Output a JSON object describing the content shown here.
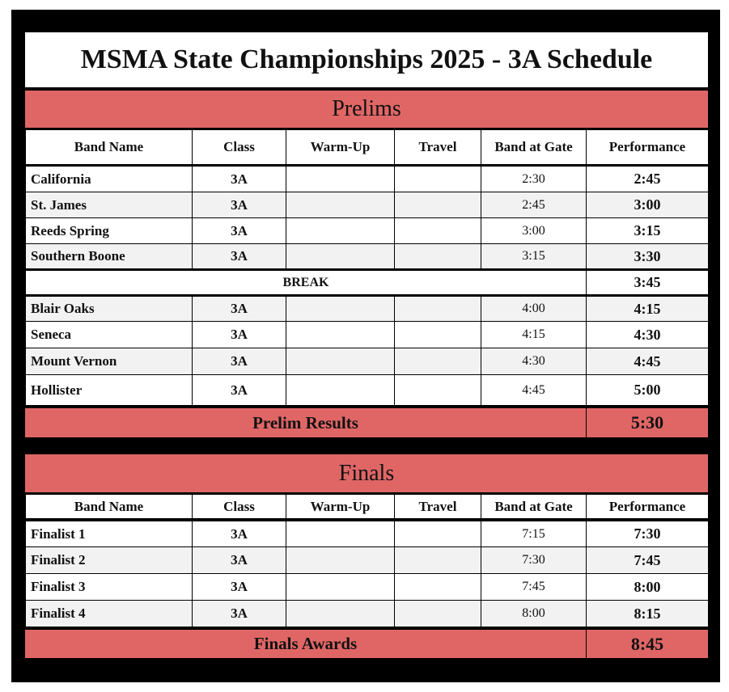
{
  "title": "MSMA State Championships 2025 - 3A Schedule",
  "colors": {
    "section_fill": "#e06666",
    "alt_row_fill": "#f2f2f2",
    "frame": "#000000"
  },
  "columns": [
    "Band Name",
    "Class",
    "Warm-Up",
    "Travel",
    "Band at Gate",
    "Performance"
  ],
  "prelims": {
    "heading": "Prelims",
    "rows": [
      {
        "band": "California",
        "class": "3A",
        "warmup": "",
        "travel": "",
        "gate": "2:30",
        "performance": "2:45"
      },
      {
        "band": "St. James",
        "class": "3A",
        "warmup": "",
        "travel": "",
        "gate": "2:45",
        "performance": "3:00"
      },
      {
        "band": "Reeds Spring",
        "class": "3A",
        "warmup": "",
        "travel": "",
        "gate": "3:00",
        "performance": "3:15"
      },
      {
        "band": "Southern Boone",
        "class": "3A",
        "warmup": "",
        "travel": "",
        "gate": "3:15",
        "performance": "3:30"
      }
    ],
    "break": {
      "label": "BREAK",
      "performance": "3:45"
    },
    "rows2": [
      {
        "band": "Blair Oaks",
        "class": "3A",
        "warmup": "",
        "travel": "",
        "gate": "4:00",
        "performance": "4:15"
      },
      {
        "band": "Seneca",
        "class": "3A",
        "warmup": "",
        "travel": "",
        "gate": "4:15",
        "performance": "4:30"
      },
      {
        "band": "Mount Vernon",
        "class": "3A",
        "warmup": "",
        "travel": "",
        "gate": "4:30",
        "performance": "4:45"
      },
      {
        "band": "Hollister",
        "class": "3A",
        "warmup": "",
        "travel": "",
        "gate": "4:45",
        "performance": "5:00"
      }
    ],
    "results": {
      "label": "Prelim Results",
      "time": "5:30"
    }
  },
  "finals": {
    "heading": "Finals",
    "rows": [
      {
        "band": "Finalist 1",
        "class": "3A",
        "warmup": "",
        "travel": "",
        "gate": "7:15",
        "performance": "7:30"
      },
      {
        "band": "Finalist 2",
        "class": "3A",
        "warmup": "",
        "travel": "",
        "gate": "7:30",
        "performance": "7:45"
      },
      {
        "band": "Finalist 3",
        "class": "3A",
        "warmup": "",
        "travel": "",
        "gate": "7:45",
        "performance": "8:00"
      },
      {
        "band": "Finalist 4",
        "class": "3A",
        "warmup": "",
        "travel": "",
        "gate": "8:00",
        "performance": "8:15"
      }
    ],
    "awards": {
      "label": "Finals Awards",
      "time": "8:45"
    }
  }
}
